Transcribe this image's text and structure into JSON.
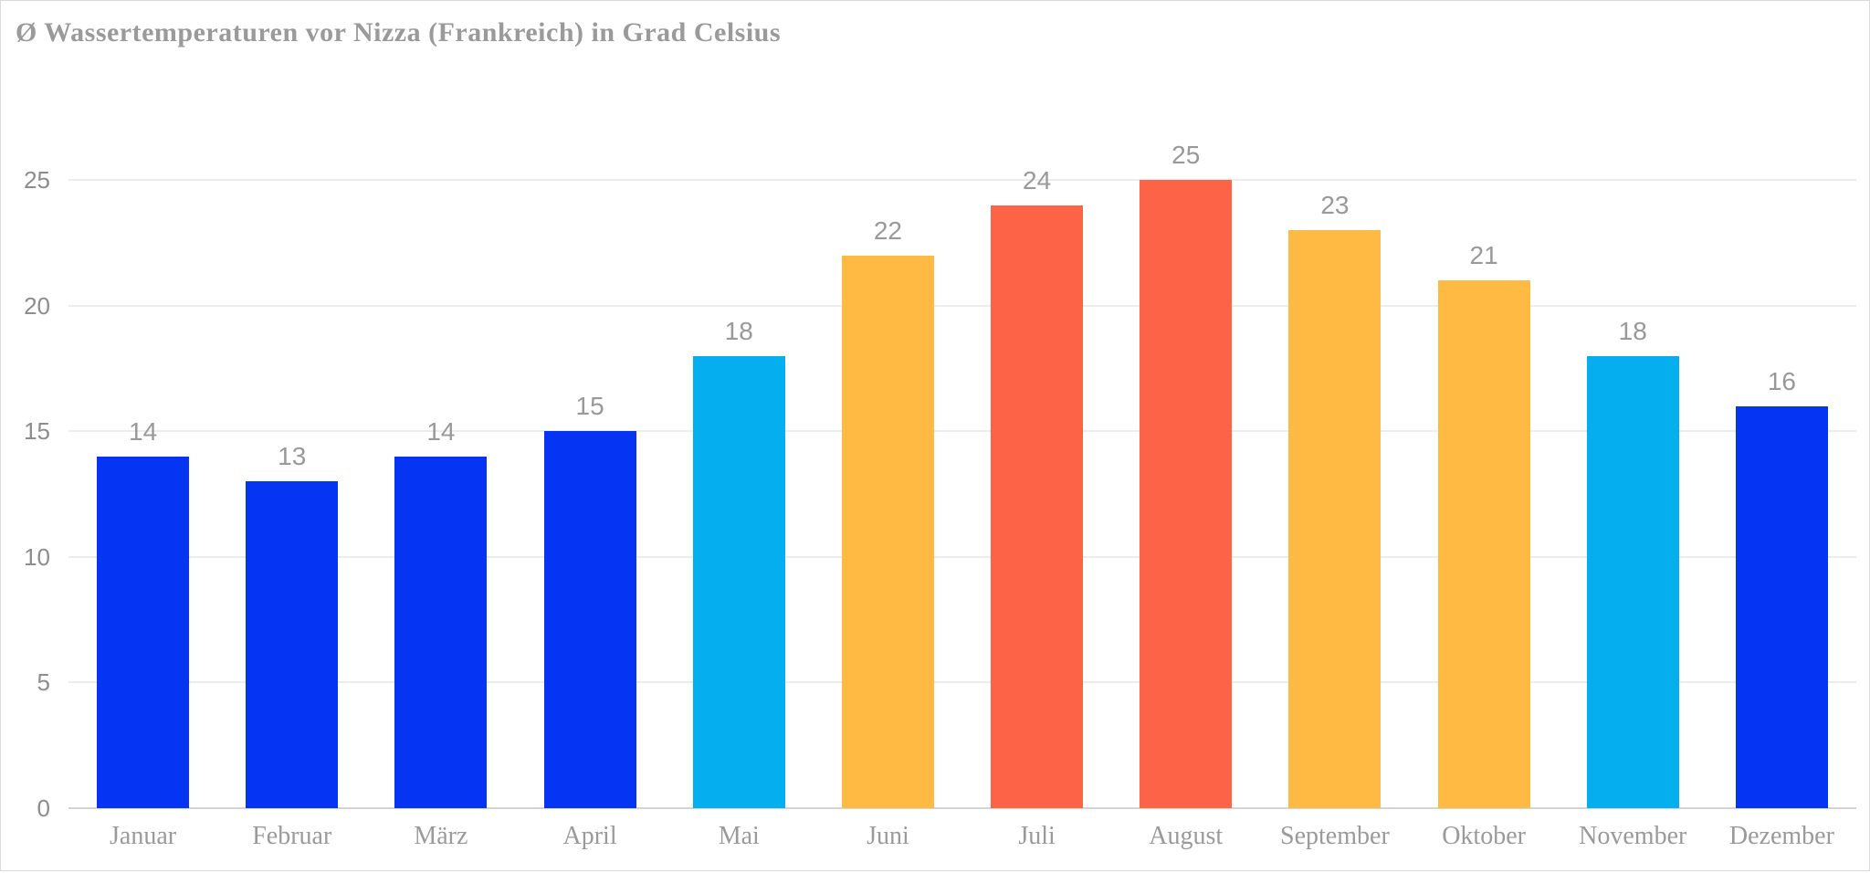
{
  "chart_data": {
    "type": "bar",
    "title": "Ø Wassertemperaturen vor Nizza (Frankreich) in Grad Celsius",
    "categories": [
      "Januar",
      "Februar",
      "März",
      "April",
      "Mai",
      "Juni",
      "Juli",
      "August",
      "September",
      "Oktober",
      "November",
      "Dezember"
    ],
    "values": [
      14,
      13,
      14,
      15,
      18,
      22,
      24,
      25,
      23,
      21,
      18,
      16
    ],
    "bar_colors": [
      "#0534f2",
      "#0534f2",
      "#0534f2",
      "#0534f2",
      "#04aeef",
      "#feba42",
      "#fd6347",
      "#fd6347",
      "#feba42",
      "#feba42",
      "#04aeef",
      "#0534f2"
    ],
    "palette": {
      "blue": "#0534f2",
      "cyan": "#04aeef",
      "orange": "#feba42",
      "red": "#fd6347"
    },
    "xlabel": "",
    "ylabel": "",
    "ylim": [
      0,
      25
    ],
    "yticks": [
      0,
      5,
      10,
      15,
      20,
      25
    ],
    "grid": true,
    "legend": false,
    "value_labels_shown": true
  },
  "style": {
    "title_color": "#9a9a9a",
    "axis_label_color": "#8d8d8d",
    "month_label_color": "#9a9a9a",
    "value_label_color": "#999999",
    "gridline_color": "#ededed",
    "baseline_color": "#d4d4d4",
    "card_border_color": "#d9d9d9",
    "background": "#ffffff"
  }
}
